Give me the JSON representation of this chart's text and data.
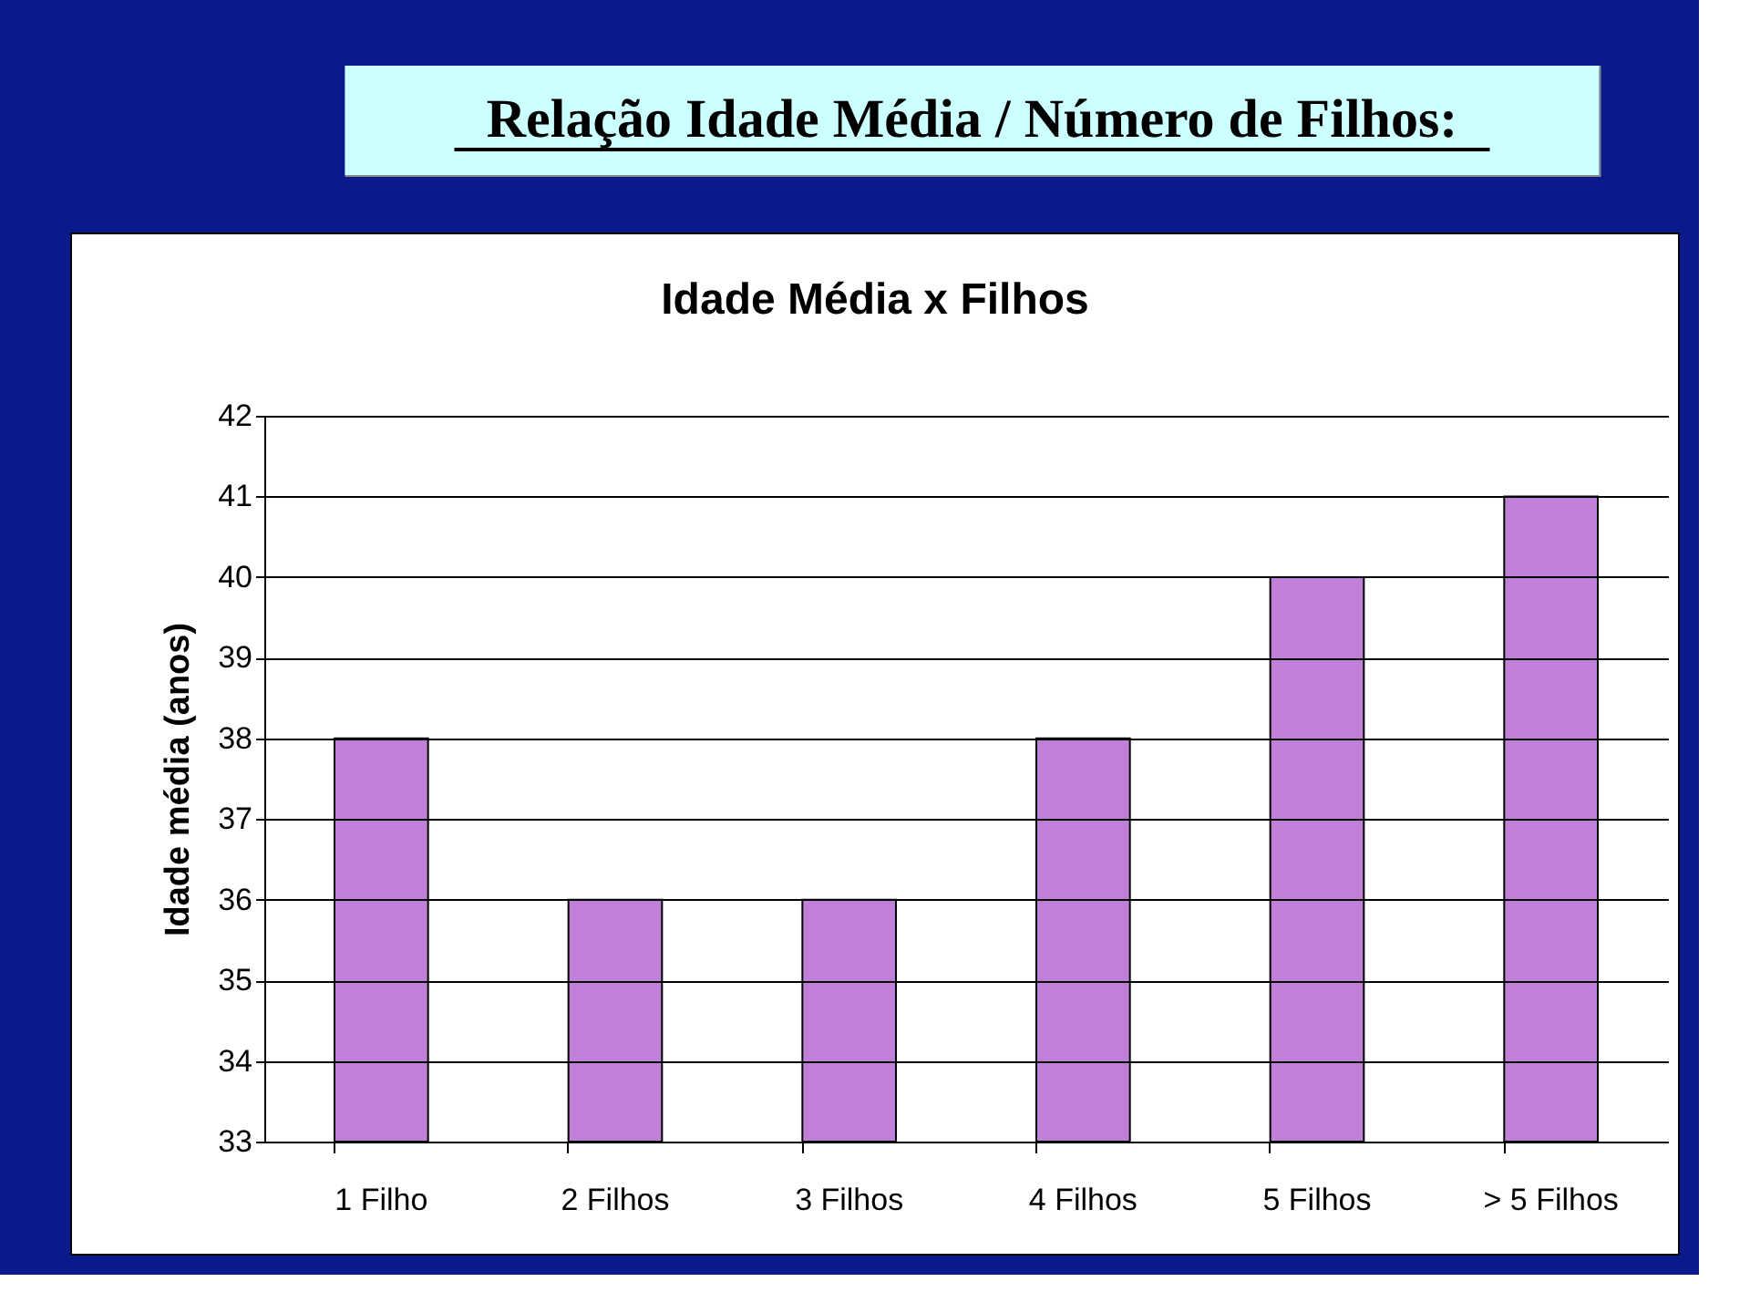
{
  "chart_data": {
    "type": "bar",
    "title": "Relação Idade Média / Número de Filhos:",
    "subtitle": "Idade Média x Filhos",
    "ylabel": "Idade média (anos)",
    "categories": [
      "1 Filho",
      "2 Filhos",
      "3 Filhos",
      "4 Filhos",
      "5 Filhos",
      "> 5 Filhos"
    ],
    "series": [
      {
        "color": "#c080d8",
        "values": [
          38,
          36,
          36,
          38,
          40,
          41
        ]
      }
    ],
    "ylim": [
      33,
      42
    ],
    "yticks": [
      33,
      34,
      35,
      36,
      37,
      38,
      39,
      40,
      41,
      42
    ],
    "grid": "y"
  }
}
